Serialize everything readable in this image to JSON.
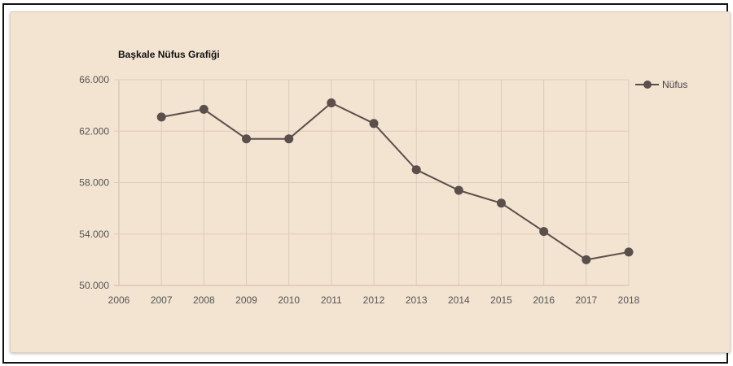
{
  "chart_data": {
    "type": "line",
    "title": "Başkale Nüfus Grafiği",
    "xlabel": "",
    "ylabel": "",
    "x_ticks": [
      "2006",
      "2007",
      "2008",
      "2009",
      "2010",
      "2011",
      "2012",
      "2013",
      "2014",
      "2015",
      "2016",
      "2017",
      "2018"
    ],
    "y_ticks": [
      "50.000",
      "54.000",
      "58.000",
      "62.000",
      "66.000"
    ],
    "xlim": [
      2006,
      2018
    ],
    "ylim": [
      50000,
      66000
    ],
    "grid": true,
    "legend_position": "top-right",
    "series": [
      {
        "name": "Nüfus",
        "color": "#5b4f4c",
        "x": [
          2007,
          2008,
          2009,
          2010,
          2011,
          2012,
          2013,
          2014,
          2015,
          2016,
          2017,
          2018
        ],
        "values": [
          63100,
          63700,
          61400,
          61400,
          64200,
          62600,
          59000,
          57400,
          56400,
          54200,
          52000,
          52600
        ]
      }
    ]
  },
  "colors": {
    "background": "#f3e3d1",
    "grid": "#dccbb8",
    "axis": "#cfbda9",
    "line": "#5b4f4c"
  }
}
